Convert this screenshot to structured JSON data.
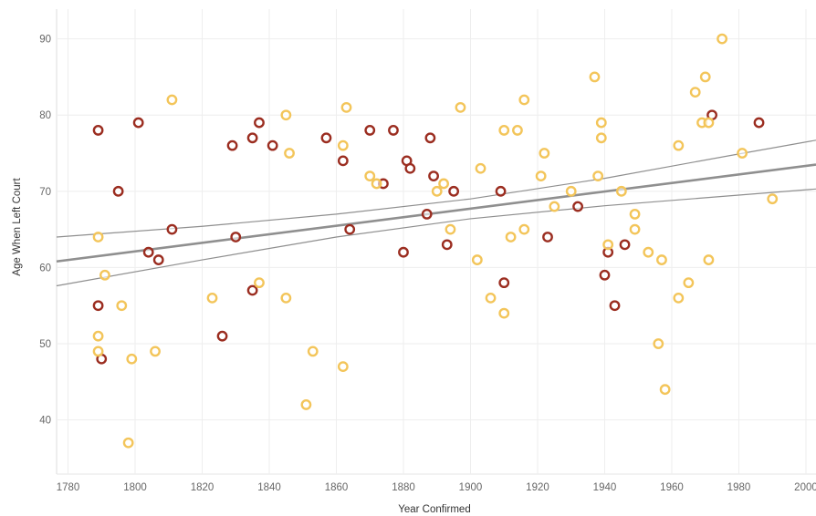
{
  "chart_data": {
    "type": "scatter",
    "xlabel": "Year Confirmed",
    "ylabel": "Age When Left Court",
    "xlim": [
      1776.6,
      2003
    ],
    "ylim": [
      32.9,
      93.9
    ],
    "xticks": [
      1780,
      1800,
      1820,
      1840,
      1860,
      1880,
      1900,
      1920,
      1940,
      1960,
      1980,
      2000
    ],
    "yticks": [
      40,
      50,
      60,
      70,
      80,
      90
    ],
    "grid": true,
    "colors": {
      "red": "#9b2d20",
      "yellow": "#f3c55a",
      "trend": "#8f8f8f",
      "grid": "#eeeeee"
    },
    "series": [
      {
        "color": "red",
        "points": [
          [
            1789,
            78
          ],
          [
            1801,
            79
          ],
          [
            1795,
            70
          ],
          [
            1804,
            62
          ],
          [
            1807,
            61
          ],
          [
            1811,
            65
          ],
          [
            1789,
            55
          ],
          [
            1790,
            48
          ],
          [
            1826,
            51
          ],
          [
            1829,
            76
          ],
          [
            1830,
            64
          ],
          [
            1835,
            77
          ],
          [
            1837,
            79
          ],
          [
            1835,
            57
          ],
          [
            1841,
            76
          ],
          [
            1857,
            77
          ],
          [
            1862,
            74
          ],
          [
            1864,
            65
          ],
          [
            1870,
            78
          ],
          [
            1874,
            71
          ],
          [
            1877,
            78
          ],
          [
            1881,
            74
          ],
          [
            1882,
            73
          ],
          [
            1880,
            62
          ],
          [
            1887,
            67
          ],
          [
            1888,
            77
          ],
          [
            1889,
            72
          ],
          [
            1893,
            63
          ],
          [
            1895,
            70
          ],
          [
            1909,
            70
          ],
          [
            1910,
            58
          ],
          [
            1923,
            64
          ],
          [
            1932,
            68
          ],
          [
            1940,
            59
          ],
          [
            1941,
            62
          ],
          [
            1943,
            55
          ],
          [
            1946,
            63
          ],
          [
            1972,
            80
          ],
          [
            1986,
            79
          ]
        ]
      },
      {
        "color": "yellow",
        "points": [
          [
            1811,
            82
          ],
          [
            1789,
            64
          ],
          [
            1791,
            59
          ],
          [
            1796,
            55
          ],
          [
            1789,
            51
          ],
          [
            1789,
            49
          ],
          [
            1799,
            48
          ],
          [
            1806,
            49
          ],
          [
            1798,
            37
          ],
          [
            1823,
            56
          ],
          [
            1837,
            58
          ],
          [
            1845,
            80
          ],
          [
            1846,
            75
          ],
          [
            1845,
            56
          ],
          [
            1853,
            49
          ],
          [
            1851,
            42
          ],
          [
            1863,
            81
          ],
          [
            1862,
            76
          ],
          [
            1862,
            47
          ],
          [
            1870,
            72
          ],
          [
            1872,
            71
          ],
          [
            1890,
            70
          ],
          [
            1892,
            71
          ],
          [
            1894,
            65
          ],
          [
            1897,
            81
          ],
          [
            1903,
            73
          ],
          [
            1902,
            61
          ],
          [
            1906,
            56
          ],
          [
            1910,
            78
          ],
          [
            1910,
            54
          ],
          [
            1912,
            64
          ],
          [
            1914,
            78
          ],
          [
            1916,
            82
          ],
          [
            1916,
            65
          ],
          [
            1921,
            72
          ],
          [
            1922,
            75
          ],
          [
            1925,
            68
          ],
          [
            1930,
            70
          ],
          [
            1937,
            85
          ],
          [
            1938,
            72
          ],
          [
            1939,
            79
          ],
          [
            1939,
            77
          ],
          [
            1941,
            63
          ],
          [
            1945,
            70
          ],
          [
            1949,
            67
          ],
          [
            1949,
            65
          ],
          [
            1953,
            62
          ],
          [
            1956,
            50
          ],
          [
            1957,
            61
          ],
          [
            1958,
            44
          ],
          [
            1962,
            76
          ],
          [
            1962,
            56
          ],
          [
            1965,
            58
          ],
          [
            1967,
            83
          ],
          [
            1969,
            79
          ],
          [
            1970,
            85
          ],
          [
            1971,
            79
          ],
          [
            1971,
            61
          ],
          [
            1975,
            90
          ],
          [
            1981,
            75
          ],
          [
            1990,
            69
          ]
        ]
      }
    ],
    "trend_line": {
      "points": [
        [
          1776.6,
          60.8
        ],
        [
          2003,
          73.5
        ]
      ]
    },
    "confidence_band": {
      "x": [
        1776.6,
        1820,
        1860,
        1900,
        1940,
        1980,
        2003
      ],
      "upper": [
        64.0,
        65.4,
        67.0,
        69.0,
        71.7,
        74.9,
        76.7
      ],
      "lower": [
        57.6,
        61.0,
        64.0,
        66.4,
        68.1,
        69.5,
        70.3
      ]
    }
  }
}
